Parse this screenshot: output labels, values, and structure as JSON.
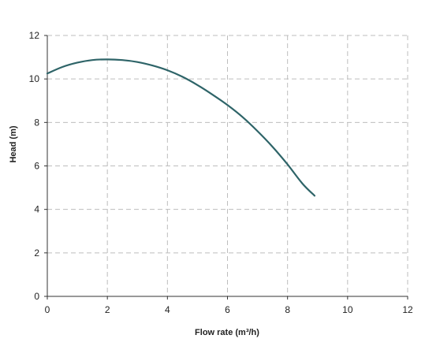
{
  "chart_data": {
    "type": "line",
    "title": "",
    "xlabel": "Flow rate (m³/h)",
    "ylabel": "Head (m)",
    "xlim": [
      0,
      12
    ],
    "ylim": [
      0,
      12
    ],
    "xticks": [
      0,
      2,
      4,
      6,
      8,
      10,
      12
    ],
    "yticks": [
      0,
      2,
      4,
      6,
      8,
      10,
      12
    ],
    "grid": true,
    "legend": "none",
    "series": [
      {
        "color": "#2e6468",
        "x": [
          0,
          0.5,
          1,
          1.5,
          2,
          2.5,
          3,
          3.5,
          4,
          4.5,
          5,
          5.5,
          6,
          6.5,
          7,
          7.5,
          8,
          8.5,
          8.9
        ],
        "y": [
          10.25,
          10.55,
          10.75,
          10.87,
          10.9,
          10.87,
          10.78,
          10.62,
          10.4,
          10.1,
          9.72,
          9.28,
          8.8,
          8.25,
          7.6,
          6.88,
          6.07,
          5.18,
          4.63
        ]
      }
    ]
  }
}
